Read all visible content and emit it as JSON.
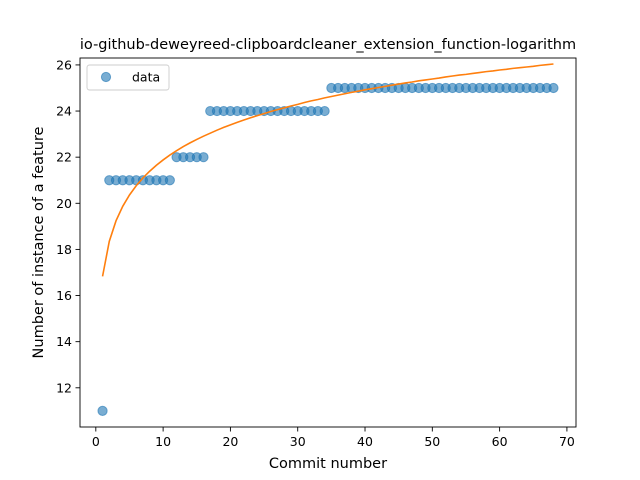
{
  "chart_data": {
    "type": "scatter",
    "title": "io-github-deweyreed-clipboardcleaner_extension_function-logarithm",
    "xlabel": "Commit number",
    "ylabel": "Number of instance of a feature",
    "xlim": [
      -2.35,
      71.35
    ],
    "ylim": [
      10.3,
      26.3
    ],
    "xticks": [
      0,
      10,
      20,
      30,
      40,
      50,
      60,
      70
    ],
    "yticks": [
      12,
      14,
      16,
      18,
      20,
      22,
      24,
      26
    ],
    "grid": false,
    "legend_position": "top-left",
    "series": [
      {
        "name": "data",
        "kind": "scatter",
        "color": "#1f77b4",
        "x": [
          1,
          2,
          3,
          4,
          5,
          6,
          7,
          8,
          9,
          10,
          11,
          12,
          13,
          14,
          15,
          16,
          17,
          18,
          19,
          20,
          21,
          22,
          23,
          24,
          25,
          26,
          27,
          28,
          29,
          30,
          31,
          32,
          33,
          34,
          35,
          36,
          37,
          38,
          39,
          40,
          41,
          42,
          43,
          44,
          45,
          46,
          47,
          48,
          49,
          50,
          51,
          52,
          53,
          54,
          55,
          56,
          57,
          58,
          59,
          60,
          61,
          62,
          63,
          64,
          65,
          66,
          67,
          68
        ],
        "y": [
          11,
          21,
          21,
          21,
          21,
          21,
          21,
          21,
          21,
          21,
          21,
          22,
          22,
          22,
          22,
          22,
          24,
          24,
          24,
          24,
          24,
          24,
          24,
          24,
          24,
          24,
          24,
          24,
          24,
          24,
          24,
          24,
          24,
          24,
          25,
          25,
          25,
          25,
          25,
          25,
          25,
          25,
          25,
          25,
          25,
          25,
          25,
          25,
          25,
          25,
          25,
          25,
          25,
          25,
          25,
          25,
          25,
          25,
          25,
          25,
          25,
          25,
          25,
          25,
          25,
          25,
          25,
          25
        ]
      },
      {
        "kind": "line",
        "color": "#ff7f0e",
        "x": [
          1,
          2,
          3,
          4,
          5,
          6,
          7,
          8,
          9,
          10,
          11,
          12,
          13,
          14,
          15,
          16,
          17,
          18,
          19,
          20,
          21,
          22,
          23,
          24,
          25,
          26,
          27,
          28,
          29,
          30,
          31,
          32,
          33,
          34,
          35,
          36,
          37,
          38,
          39,
          40,
          41,
          42,
          43,
          44,
          45,
          46,
          47,
          48,
          49,
          50,
          51,
          52,
          53,
          54,
          55,
          56,
          57,
          58,
          59,
          60,
          61,
          62,
          63,
          64,
          65,
          66,
          67,
          68
        ],
        "y": [
          16.83,
          18.35,
          19.24,
          19.87,
          20.36,
          20.76,
          21.1,
          21.39,
          21.65,
          21.88,
          22.09,
          22.28,
          22.46,
          22.62,
          22.77,
          22.91,
          23.04,
          23.17,
          23.29,
          23.4,
          23.51,
          23.61,
          23.71,
          23.8,
          23.89,
          23.98,
          24.06,
          24.14,
          24.22,
          24.29,
          24.37,
          24.44,
          24.5,
          24.57,
          24.63,
          24.69,
          24.75,
          24.81,
          24.86,
          24.92,
          24.97,
          25.02,
          25.07,
          25.12,
          25.17,
          25.22,
          25.26,
          25.31,
          25.35,
          25.39,
          25.43,
          25.48,
          25.52,
          25.56,
          25.59,
          25.63,
          25.67,
          25.71,
          25.74,
          25.78,
          25.81,
          25.85,
          25.88,
          25.91,
          25.94,
          25.98,
          26.01,
          26.04
        ]
      }
    ]
  }
}
